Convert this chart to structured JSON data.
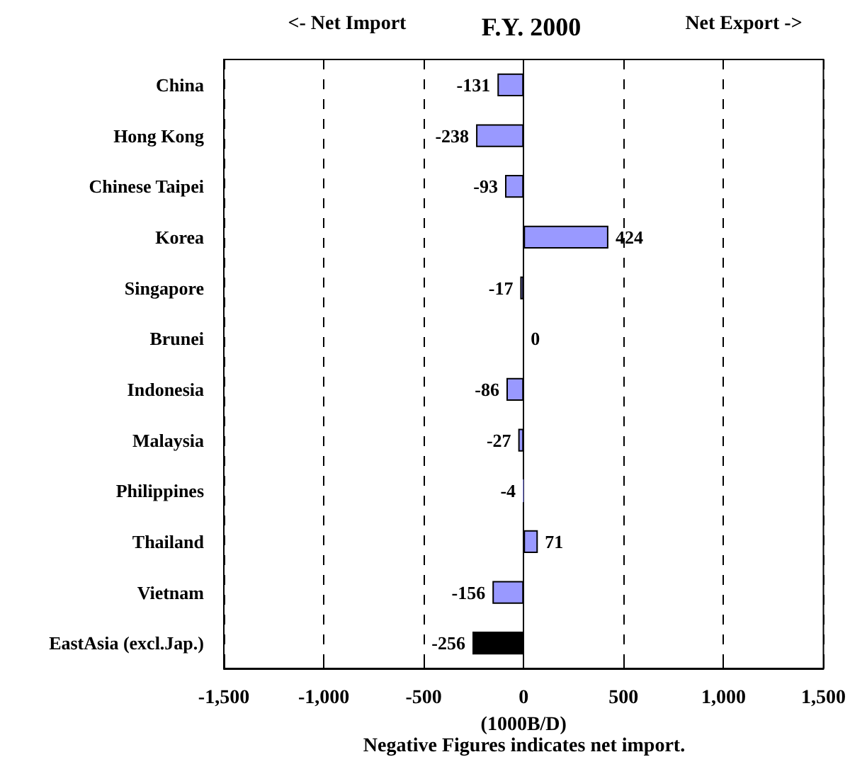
{
  "chart_data": {
    "type": "bar",
    "orientation": "horizontal",
    "title": "F.Y. 2000",
    "xlabel": "(1000B/D)",
    "annotations": [
      "<- Net Import",
      "Net Export ->",
      "Negative Figures indicates net import."
    ],
    "categories": [
      "China",
      "Hong Kong",
      "Chinese Taipei",
      "Korea",
      "Singapore",
      "Brunei",
      "Indonesia",
      "Malaysia",
      "Philippines",
      "Thailand",
      "Vietnam",
      "EastAsia (excl.Jap.)"
    ],
    "values": [
      -131,
      -238,
      -93,
      424,
      -17,
      0,
      -86,
      -27,
      -4,
      71,
      -156,
      -256
    ],
    "colors": [
      "#9999ff",
      "#9999ff",
      "#9999ff",
      "#9999ff",
      "#9999ff",
      "#9999ff",
      "#9999ff",
      "#9999ff",
      "#9999ff",
      "#9999ff",
      "#9999ff",
      "#000000"
    ],
    "xlim": [
      -1500,
      1500
    ],
    "xticks": [
      {
        "value": -1500,
        "label": "-1,500"
      },
      {
        "value": -1000,
        "label": "-1,000"
      },
      -500,
      0,
      500,
      {
        "value": 1000,
        "label": "1,000"
      },
      {
        "value": 1500,
        "label": "1,500"
      }
    ],
    "grid": "x",
    "data_labels": true
  }
}
